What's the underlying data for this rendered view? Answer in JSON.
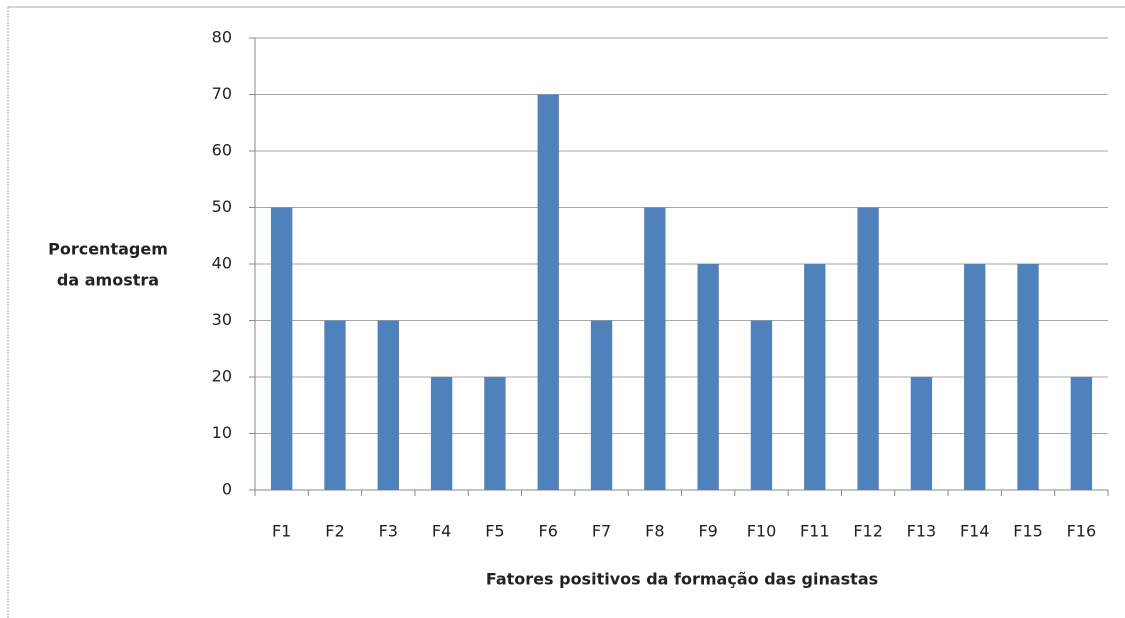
{
  "chart_data": {
    "type": "bar",
    "ylabel": [
      "Porcentagem",
      "da amostra"
    ],
    "xlabel": "Fatores positivos da formação das ginastas",
    "categories": [
      "F1",
      "F2",
      "F3",
      "F4",
      "F5",
      "F6",
      "F7",
      "F8",
      "F9",
      "F10",
      "F11",
      "F12",
      "F13",
      "F14",
      "F15",
      "F16"
    ],
    "values": [
      50,
      30,
      30,
      20,
      20,
      70,
      30,
      50,
      40,
      30,
      40,
      50,
      20,
      40,
      40,
      20
    ],
    "color": "#4f81bd",
    "ylim": [
      0,
      80
    ],
    "yticks": [
      0,
      10,
      20,
      30,
      40,
      50,
      60,
      70,
      80
    ],
    "grid": true
  }
}
